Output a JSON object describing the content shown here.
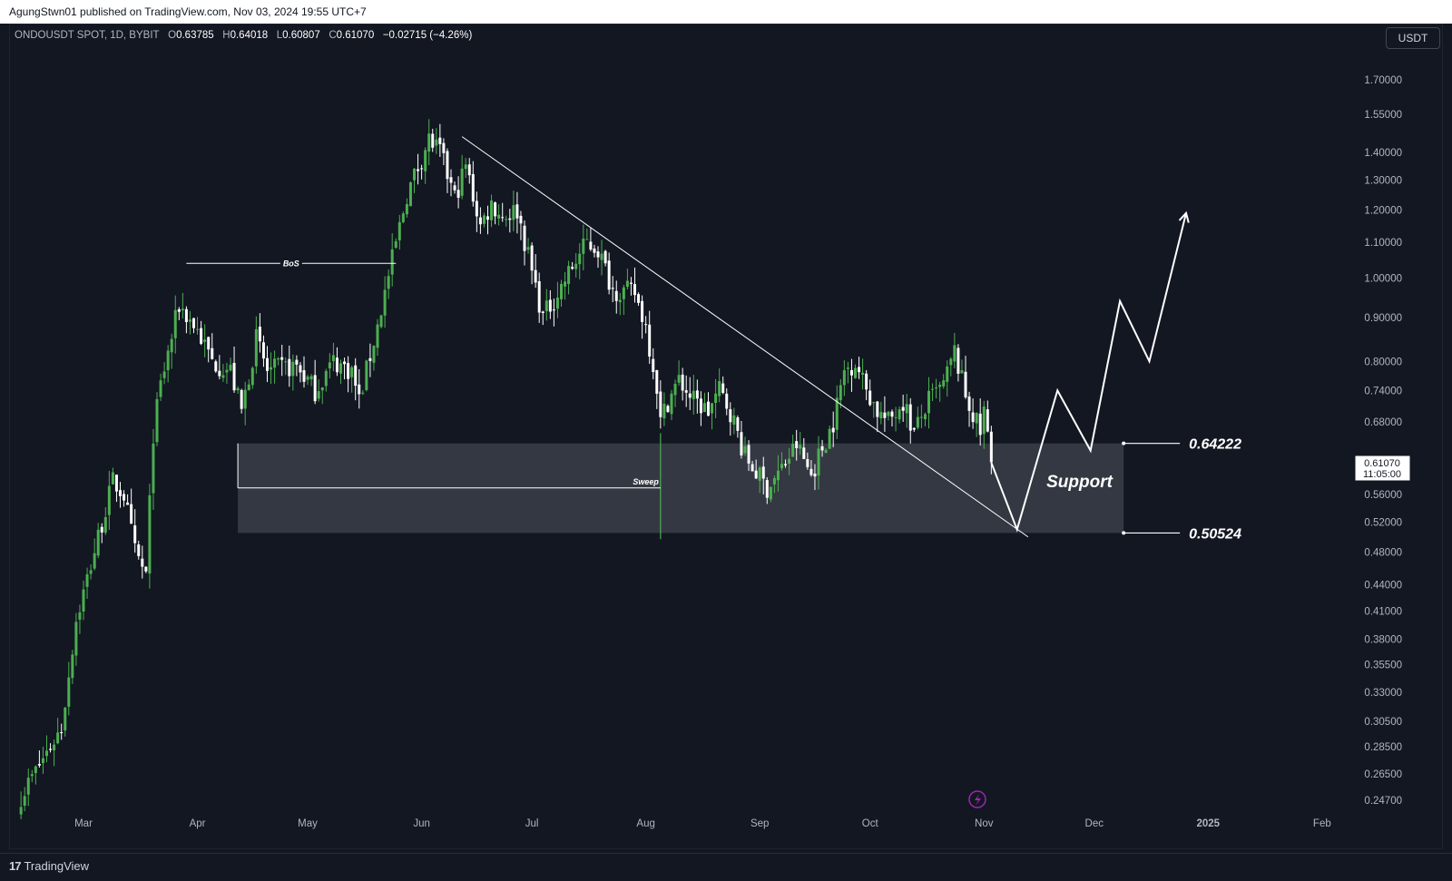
{
  "header": {
    "publisher": "AgungStwn01 published on TradingView.com, Nov 03, 2024 19:55 UTC+7"
  },
  "legend": {
    "symbol": "ONDOUSDT SPOT, 1D, BYBIT",
    "o_label": "O",
    "o": "0.63785",
    "h_label": "H",
    "h": "0.64018",
    "l_label": "L",
    "l": "0.60807",
    "c_label": "C",
    "c": "0.61070",
    "change": "−0.02715 (−4.26%)"
  },
  "currency_button": "USDT",
  "brand": {
    "name": "TradingView",
    "logo_glyph": "17"
  },
  "price_tag": {
    "price": "0.61070",
    "countdown": "11:05:00"
  },
  "annotations": {
    "bos": "BoS",
    "sweep": "Sweep",
    "support": "Support",
    "level_top": "0.64222",
    "level_bottom": "0.50524"
  },
  "colors": {
    "background": "#131722",
    "up_candle": "#4caf50",
    "down_candle": "#ffffff",
    "support_zone": "#363a45",
    "drawing": "#ffffff",
    "lightning": "#9c27b0"
  },
  "chart_data": {
    "type": "candlestick",
    "symbol": "ONDOUSDT",
    "timeframe": "1D",
    "y_scale": "log",
    "x_tick_labels": [
      "Mar",
      "Apr",
      "May",
      "Jun",
      "Jul",
      "Aug",
      "Sep",
      "Oct",
      "Nov",
      "Dec",
      "2025",
      "Feb"
    ],
    "y_tick_labels": [
      "1.70000",
      "1.55000",
      "1.40000",
      "1.30000",
      "1.20000",
      "1.10000",
      "1.00000",
      "0.90000",
      "0.80000",
      "0.74000",
      "0.68000",
      "0.56000",
      "0.52000",
      "0.48000",
      "0.44000",
      "0.41000",
      "0.38000",
      "0.35500",
      "0.33000",
      "0.30500",
      "0.28500",
      "0.26500",
      "0.24700"
    ],
    "date_range": [
      "2024-02-13",
      "2024-11-03"
    ],
    "close_path": [
      {
        "date": "2024-02-13",
        "price": 0.25
      },
      {
        "date": "2024-02-24",
        "price": 0.3
      },
      {
        "date": "2024-02-28",
        "price": 0.4
      },
      {
        "date": "2024-03-05",
        "price": 0.5
      },
      {
        "date": "2024-03-09",
        "price": 0.58
      },
      {
        "date": "2024-03-12",
        "price": 0.56
      },
      {
        "date": "2024-03-15",
        "price": 0.48
      },
      {
        "date": "2024-03-18",
        "price": 0.45
      },
      {
        "date": "2024-03-20",
        "price": 0.66
      },
      {
        "date": "2024-03-22",
        "price": 0.75
      },
      {
        "date": "2024-03-27",
        "price": 0.93
      },
      {
        "date": "2024-04-01",
        "price": 0.87
      },
      {
        "date": "2024-04-05",
        "price": 0.8
      },
      {
        "date": "2024-04-10",
        "price": 0.78
      },
      {
        "date": "2024-04-13",
        "price": 0.7
      },
      {
        "date": "2024-04-17",
        "price": 0.85
      },
      {
        "date": "2024-04-20",
        "price": 0.78
      },
      {
        "date": "2024-04-28",
        "price": 0.79
      },
      {
        "date": "2024-05-03",
        "price": 0.74
      },
      {
        "date": "2024-05-08",
        "price": 0.8
      },
      {
        "date": "2024-05-13",
        "price": 0.78
      },
      {
        "date": "2024-05-15",
        "price": 0.72
      },
      {
        "date": "2024-05-20",
        "price": 0.88
      },
      {
        "date": "2024-05-24",
        "price": 1.05
      },
      {
        "date": "2024-05-28",
        "price": 1.25
      },
      {
        "date": "2024-06-01",
        "price": 1.38
      },
      {
        "date": "2024-06-03",
        "price": 1.45
      },
      {
        "date": "2024-06-06",
        "price": 1.4
      },
      {
        "date": "2024-06-10",
        "price": 1.24
      },
      {
        "date": "2024-06-13",
        "price": 1.35
      },
      {
        "date": "2024-06-17",
        "price": 1.15
      },
      {
        "date": "2024-06-20",
        "price": 1.22
      },
      {
        "date": "2024-06-23",
        "price": 1.18
      },
      {
        "date": "2024-06-27",
        "price": 1.2
      },
      {
        "date": "2024-07-04",
        "price": 0.9
      },
      {
        "date": "2024-07-08",
        "price": 0.96
      },
      {
        "date": "2024-07-12",
        "price": 1.03
      },
      {
        "date": "2024-07-16",
        "price": 1.1
      },
      {
        "date": "2024-07-19",
        "price": 1.08
      },
      {
        "date": "2024-07-23",
        "price": 0.97
      },
      {
        "date": "2024-07-29",
        "price": 0.96
      },
      {
        "date": "2024-08-01",
        "price": 0.88
      },
      {
        "date": "2024-08-04",
        "price": 0.75
      },
      {
        "date": "2024-08-05",
        "price": 0.68
      },
      {
        "date": "2024-08-07",
        "price": 0.72
      },
      {
        "date": "2024-08-10",
        "price": 0.76
      },
      {
        "date": "2024-08-14",
        "price": 0.72
      },
      {
        "date": "2024-08-18",
        "price": 0.7
      },
      {
        "date": "2024-08-21",
        "price": 0.74
      },
      {
        "date": "2024-08-24",
        "price": 0.7
      },
      {
        "date": "2024-08-28",
        "price": 0.62
      },
      {
        "date": "2024-09-03",
        "price": 0.57
      },
      {
        "date": "2024-09-07",
        "price": 0.6
      },
      {
        "date": "2024-09-11",
        "price": 0.64
      },
      {
        "date": "2024-09-15",
        "price": 0.59
      },
      {
        "date": "2024-09-17",
        "price": 0.62
      },
      {
        "date": "2024-09-21",
        "price": 0.68
      },
      {
        "date": "2024-09-24",
        "price": 0.78
      },
      {
        "date": "2024-09-27",
        "price": 0.8
      },
      {
        "date": "2024-09-29",
        "price": 0.76
      },
      {
        "date": "2024-10-03",
        "price": 0.7
      },
      {
        "date": "2024-10-06",
        "price": 0.68
      },
      {
        "date": "2024-10-10",
        "price": 0.72
      },
      {
        "date": "2024-10-13",
        "price": 0.66
      },
      {
        "date": "2024-10-17",
        "price": 0.72
      },
      {
        "date": "2024-10-21",
        "price": 0.75
      },
      {
        "date": "2024-10-24",
        "price": 0.82
      },
      {
        "date": "2024-10-27",
        "price": 0.73
      },
      {
        "date": "2024-10-31",
        "price": 0.66
      },
      {
        "date": "2024-11-01",
        "price": 0.7
      },
      {
        "date": "2024-11-03",
        "price": 0.6107
      }
    ],
    "support_zone": {
      "top": 0.64222,
      "bottom": 0.50524,
      "label": "Support"
    },
    "levels": [
      0.64222,
      0.50524
    ],
    "bos_level": 1.04,
    "sweep_level": 0.57,
    "trendline": {
      "start": {
        "date": "2024-06-12",
        "price": 1.46
      },
      "end": {
        "date": "2024-11-13",
        "price": 0.5
      }
    },
    "projection": [
      {
        "date": "2024-11-03",
        "price": 0.61
      },
      {
        "date": "2024-11-10",
        "price": 0.51
      },
      {
        "date": "2024-11-21",
        "price": 0.74
      },
      {
        "date": "2024-11-30",
        "price": 0.63
      },
      {
        "date": "2024-12-08",
        "price": 0.94
      },
      {
        "date": "2024-12-16",
        "price": 0.8
      },
      {
        "date": "2024-12-26",
        "price": 1.19
      }
    ]
  }
}
